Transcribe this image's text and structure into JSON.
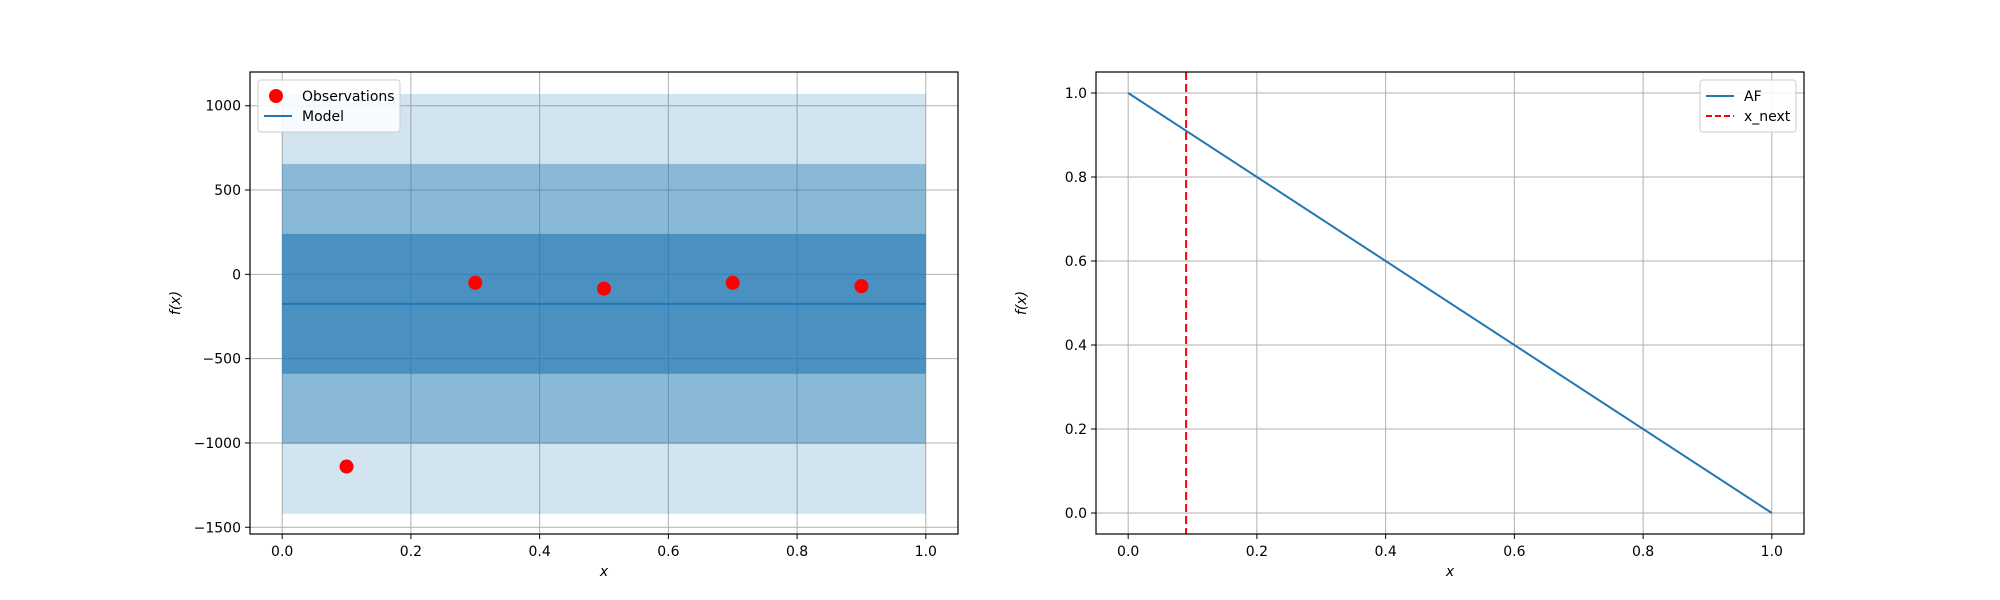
{
  "chart_data": [
    {
      "type": "line",
      "xlabel": "x",
      "ylabel": "f(x)",
      "xlim": [
        -0.05,
        1.05
      ],
      "ylim": [
        -1540,
        1200
      ],
      "xticks": [
        0.0,
        0.2,
        0.4,
        0.6,
        0.8,
        1.0
      ],
      "xtick_labels": [
        "0.0",
        "0.2",
        "0.4",
        "0.6",
        "0.8",
        "1.0"
      ],
      "yticks": [
        -1500,
        -1000,
        -500,
        0,
        500,
        1000
      ],
      "ytick_labels": [
        "−1500",
        "−1000",
        "−500",
        "0",
        "500",
        "1000"
      ],
      "grid": true,
      "legend_position": "top-left",
      "bands": [
        {
          "x": [
            0.0,
            1.0
          ],
          "lower": -1420,
          "upper": 1070,
          "color": "#1f77b4",
          "opacity": 0.2
        },
        {
          "x": [
            0.0,
            1.0
          ],
          "lower": -1005,
          "upper": 655,
          "color": "#1f77b4",
          "opacity": 0.4
        },
        {
          "x": [
            0.0,
            1.0
          ],
          "lower": -590,
          "upper": 240,
          "color": "#1f77b4",
          "opacity": 0.6
        }
      ],
      "series": [
        {
          "name": "Observations",
          "kind": "scatter",
          "color": "#ff0000",
          "x": [
            0.1,
            0.3,
            0.5,
            0.7,
            0.9
          ],
          "y": [
            -1140,
            -50,
            -85,
            -50,
            -70
          ]
        },
        {
          "name": "Model",
          "kind": "line",
          "color": "#1f77b4",
          "x": [
            0.0,
            1.0
          ],
          "y": [
            -175,
            -175
          ]
        }
      ]
    },
    {
      "type": "line",
      "xlabel": "x",
      "ylabel": "f(x)",
      "xlim": [
        -0.05,
        1.05
      ],
      "ylim": [
        -0.05,
        1.05
      ],
      "xticks": [
        0.0,
        0.2,
        0.4,
        0.6,
        0.8,
        1.0
      ],
      "xtick_labels": [
        "0.0",
        "0.2",
        "0.4",
        "0.6",
        "0.8",
        "1.0"
      ],
      "yticks": [
        0.0,
        0.2,
        0.4,
        0.6,
        0.8,
        1.0
      ],
      "ytick_labels": [
        "0.0",
        "0.2",
        "0.4",
        "0.6",
        "0.8",
        "1.0"
      ],
      "grid": true,
      "legend_position": "top-right",
      "series": [
        {
          "name": "AF",
          "kind": "line",
          "color": "#1f77b4",
          "x": [
            0.0,
            1.0
          ],
          "y": [
            1.0,
            0.0
          ]
        },
        {
          "name": "x_next",
          "kind": "vline",
          "color": "#ff0000",
          "x": [
            0.09
          ]
        }
      ]
    }
  ]
}
